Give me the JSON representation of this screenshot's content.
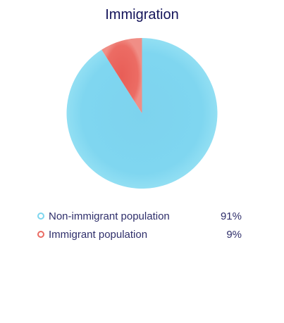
{
  "chart_data": {
    "type": "pie",
    "title": "Immigration",
    "slices": [
      {
        "label": "Non-immigrant population",
        "value": 91,
        "value_label": "91%",
        "color": "#7dd6ef"
      },
      {
        "label": "Immigrant population",
        "value": 9,
        "value_label": "9%",
        "color": "#ea6b63"
      }
    ],
    "legend_placement": "bottom"
  }
}
